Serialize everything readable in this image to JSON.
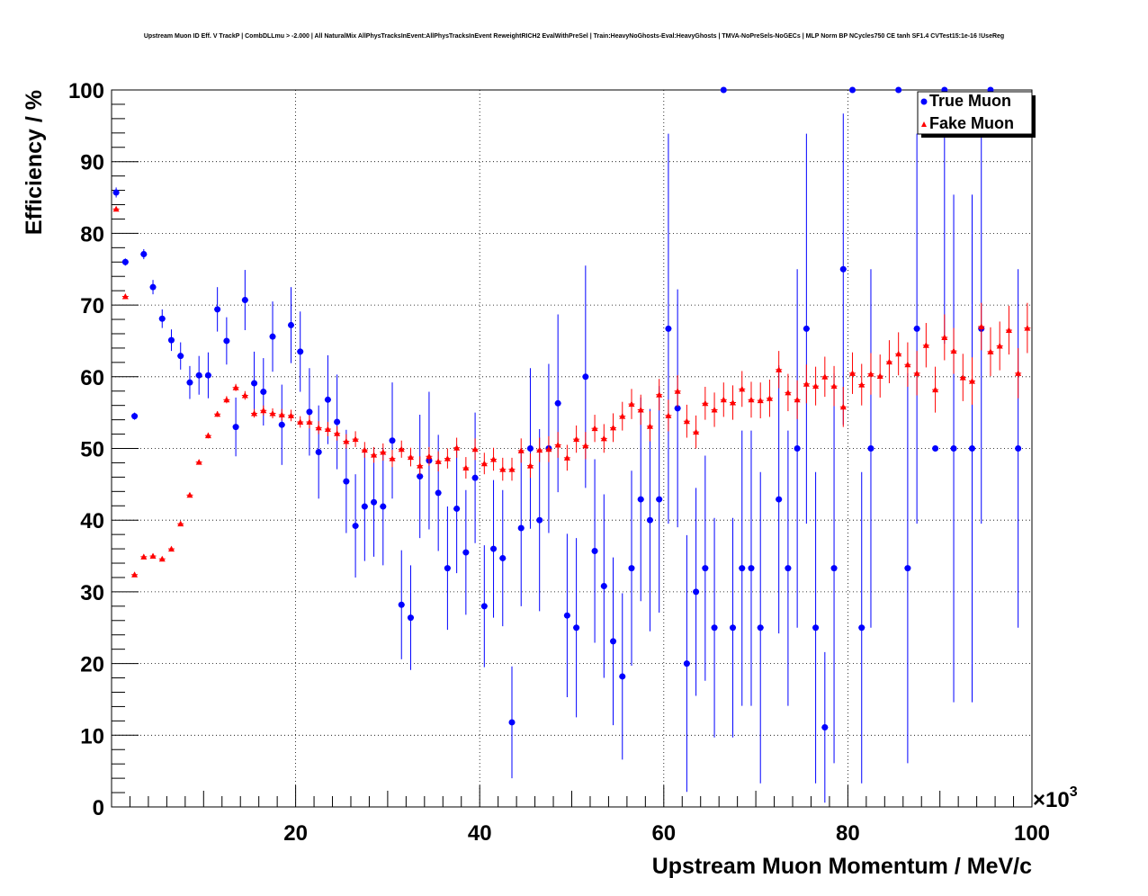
{
  "chart_data": {
    "type": "scatter",
    "title": "Upstream Muon ID Eff. V TrackP | CombDLLmu > -2.000 | All NaturalMix AllPhysTracksInEvent:AllPhysTracksInEvent ReweightRICH2 EvalWithPreSel | Train:HeavyNoGhosts-Eval:HeavyGhosts | TMVA-NoPreSels-NoGECs | MLP Norm BP NCycles750 CE tanh SF1.4 CVTest15:1e-16 !UseReg",
    "xlabel": "Upstream Muon Momentum / MeV/c",
    "ylabel": "Efficiency / %",
    "x_multiplier": "×10",
    "x_multiplier_exp": "3",
    "xlim": [
      0,
      100
    ],
    "ylim": [
      0,
      100
    ],
    "xticks": [
      20,
      40,
      60,
      80,
      100
    ],
    "yticks": [
      0,
      10,
      20,
      30,
      40,
      50,
      60,
      70,
      80,
      90,
      100
    ],
    "grid": true,
    "legend_position": "top-right",
    "series": [
      {
        "name": "True Muon",
        "color": "#0000ff",
        "marker": "circle",
        "x": [
          0.5,
          1.5,
          2.5,
          3.5,
          4.5,
          5.5,
          6.5,
          7.5,
          8.5,
          9.5,
          10.5,
          11.5,
          12.5,
          13.5,
          14.5,
          15.5,
          16.5,
          17.5,
          18.5,
          19.5,
          20.5,
          21.5,
          22.5,
          23.5,
          24.5,
          25.5,
          26.5,
          27.5,
          28.5,
          29.5,
          30.5,
          31.5,
          32.5,
          33.5,
          34.5,
          35.5,
          36.5,
          37.5,
          38.5,
          39.5,
          40.5,
          41.5,
          42.5,
          43.5,
          44.5,
          45.5,
          46.5,
          47.5,
          48.5,
          49.5,
          50.5,
          51.5,
          52.5,
          53.5,
          54.5,
          55.5,
          56.5,
          57.5,
          58.5,
          59.5,
          60.5,
          61.5,
          62.5,
          63.5,
          64.5,
          65.5,
          66.5,
          67.5,
          68.5,
          69.5,
          70.5,
          72.5,
          73.5,
          74.5,
          75.5,
          76.5,
          77.5,
          78.5,
          79.5,
          80.5,
          81.5,
          82.5,
          85.5,
          86.5,
          87.5,
          89.5,
          90.5,
          91.5,
          93.5,
          94.5,
          95.5,
          98.5
        ],
        "y": [
          85.7,
          76.0,
          54.5,
          77.1,
          72.5,
          68.1,
          65.1,
          62.9,
          59.2,
          60.2,
          60.2,
          69.4,
          65.0,
          53.0,
          70.7,
          59.1,
          57.9,
          65.6,
          53.3,
          67.2,
          63.5,
          55.1,
          49.5,
          56.8,
          53.7,
          45.4,
          39.2,
          41.9,
          42.5,
          41.9,
          51.1,
          28.2,
          26.4,
          46.1,
          48.3,
          43.8,
          33.3,
          41.6,
          35.5,
          45.9,
          28.0,
          36.0,
          34.7,
          11.8,
          38.9,
          50.0,
          40.0,
          50.0,
          56.3,
          26.7,
          25.0,
          60.0,
          35.7,
          30.8,
          23.1,
          18.2,
          33.3,
          42.9,
          40.0,
          42.9,
          66.7,
          55.6,
          20.0,
          30.0,
          33.3,
          25.0,
          100.0,
          25.0,
          33.3,
          33.3,
          25.0,
          42.9,
          33.3,
          50.0,
          66.7,
          25.0,
          11.1,
          33.3,
          75.0,
          100.0,
          25.0,
          50.0,
          100.0,
          33.3,
          66.7,
          50.0,
          100.0,
          50.0,
          50.0,
          66.7,
          100.0,
          50.0
        ],
        "err": [
          0.7,
          0.5,
          0.5,
          0.7,
          1.0,
          1.3,
          1.5,
          1.9,
          2.3,
          2.7,
          3.2,
          3.1,
          3.3,
          4.1,
          4.2,
          4.4,
          4.7,
          4.9,
          5.6,
          5.3,
          5.6,
          6.1,
          6.5,
          6.2,
          6.6,
          7.2,
          7.2,
          7.6,
          7.6,
          8.2,
          8.1,
          7.6,
          7.3,
          8.6,
          9.6,
          8.1,
          8.6,
          9.0,
          8.7,
          9.1,
          8.5,
          9.6,
          9.5,
          7.8,
          10.9,
          11.2,
          12.7,
          11.8,
          12.4,
          11.4,
          12.5,
          15.5,
          12.8,
          12.8,
          11.7,
          11.6,
          13.6,
          14.2,
          15.5,
          15.8,
          27.2,
          16.6,
          17.9,
          14.5,
          15.7,
          15.3,
          0,
          15.3,
          19.2,
          19.2,
          21.7,
          18.7,
          19.2,
          25.0,
          27.2,
          21.7,
          10.5,
          27.2,
          21.7,
          0,
          21.7,
          25.0,
          0,
          27.2,
          27.2,
          0,
          35.4,
          35.4,
          35.4,
          27.2,
          0,
          25.0
        ]
      },
      {
        "name": "Fake Muon",
        "color": "#ff0000",
        "marker": "triangle",
        "x": [
          0.5,
          1.5,
          2.5,
          3.5,
          4.5,
          5.5,
          6.5,
          7.5,
          8.5,
          9.5,
          10.5,
          11.5,
          12.5,
          13.5,
          14.5,
          15.5,
          16.5,
          17.5,
          18.5,
          19.5,
          20.5,
          21.5,
          22.5,
          23.5,
          24.5,
          25.5,
          26.5,
          27.5,
          28.5,
          29.5,
          30.5,
          31.5,
          32.5,
          33.5,
          34.5,
          35.5,
          36.5,
          37.5,
          38.5,
          39.5,
          40.5,
          41.5,
          42.5,
          43.5,
          44.5,
          45.5,
          46.5,
          47.5,
          48.5,
          49.5,
          50.5,
          51.5,
          52.5,
          53.5,
          54.5,
          55.5,
          56.5,
          57.5,
          58.5,
          59.5,
          60.5,
          61.5,
          62.5,
          63.5,
          64.5,
          65.5,
          66.5,
          67.5,
          68.5,
          69.5,
          70.5,
          71.5,
          72.5,
          73.5,
          74.5,
          75.5,
          76.5,
          77.5,
          78.5,
          79.5,
          80.5,
          81.5,
          82.5,
          83.5,
          84.5,
          85.5,
          86.5,
          87.5,
          88.5,
          89.5,
          90.5,
          91.5,
          92.5,
          93.5,
          94.5,
          95.5,
          96.5,
          97.5,
          98.5,
          99.5
        ],
        "y": [
          83.4,
          71.2,
          32.4,
          34.9,
          35.0,
          34.6,
          36.0,
          39.5,
          43.5,
          48.1,
          51.8,
          54.8,
          56.8,
          58.5,
          57.4,
          54.9,
          55.3,
          54.9,
          54.7,
          54.6,
          53.7,
          53.7,
          52.9,
          52.7,
          52.1,
          51.0,
          51.3,
          49.8,
          49.1,
          49.5,
          48.6,
          49.9,
          48.8,
          47.6,
          48.9,
          48.2,
          48.6,
          50.1,
          47.3,
          49.9,
          47.9,
          48.5,
          47.1,
          47.1,
          49.7,
          47.6,
          49.8,
          49.9,
          50.5,
          48.7,
          51.3,
          50.4,
          52.8,
          51.4,
          52.9,
          54.5,
          56.2,
          55.4,
          53.1,
          57.5,
          54.6,
          58.0,
          53.8,
          52.3,
          56.3,
          55.4,
          56.8,
          56.4,
          58.3,
          56.8,
          56.7,
          57.0,
          61.0,
          57.8,
          56.8,
          59.0,
          58.7,
          60.0,
          58.7,
          55.8,
          60.5,
          58.9,
          60.4,
          60.1,
          62.1,
          63.2,
          61.7,
          60.5,
          64.4,
          58.2,
          65.5,
          63.6,
          59.9,
          59.4,
          67.0,
          63.5,
          64.3,
          66.5,
          60.5,
          66.8
        ],
        "err": [
          0.3,
          0.3,
          0.3,
          0.3,
          0.3,
          0.3,
          0.3,
          0.3,
          0.3,
          0.3,
          0.4,
          0.4,
          0.5,
          0.5,
          0.6,
          0.6,
          0.7,
          0.7,
          0.8,
          0.8,
          0.8,
          0.9,
          0.9,
          1.0,
          1.0,
          1.0,
          1.1,
          1.1,
          1.1,
          1.2,
          1.2,
          1.2,
          1.3,
          1.3,
          1.3,
          1.4,
          1.4,
          1.4,
          1.5,
          1.5,
          1.5,
          1.6,
          1.6,
          1.6,
          1.7,
          1.7,
          1.7,
          1.8,
          1.8,
          1.8,
          1.9,
          1.9,
          1.9,
          2.0,
          2.0,
          2.0,
          2.1,
          2.1,
          2.1,
          2.2,
          2.2,
          2.2,
          2.3,
          2.3,
          2.3,
          2.4,
          2.4,
          2.4,
          2.5,
          2.5,
          2.5,
          2.6,
          2.6,
          2.6,
          2.7,
          2.7,
          2.7,
          2.8,
          2.8,
          2.8,
          2.9,
          2.9,
          2.9,
          3.0,
          3.0,
          3.0,
          3.1,
          3.1,
          3.1,
          3.2,
          3.2,
          3.2,
          3.3,
          3.3,
          3.3,
          3.4,
          3.4,
          3.4,
          3.5,
          3.5
        ]
      }
    ]
  }
}
